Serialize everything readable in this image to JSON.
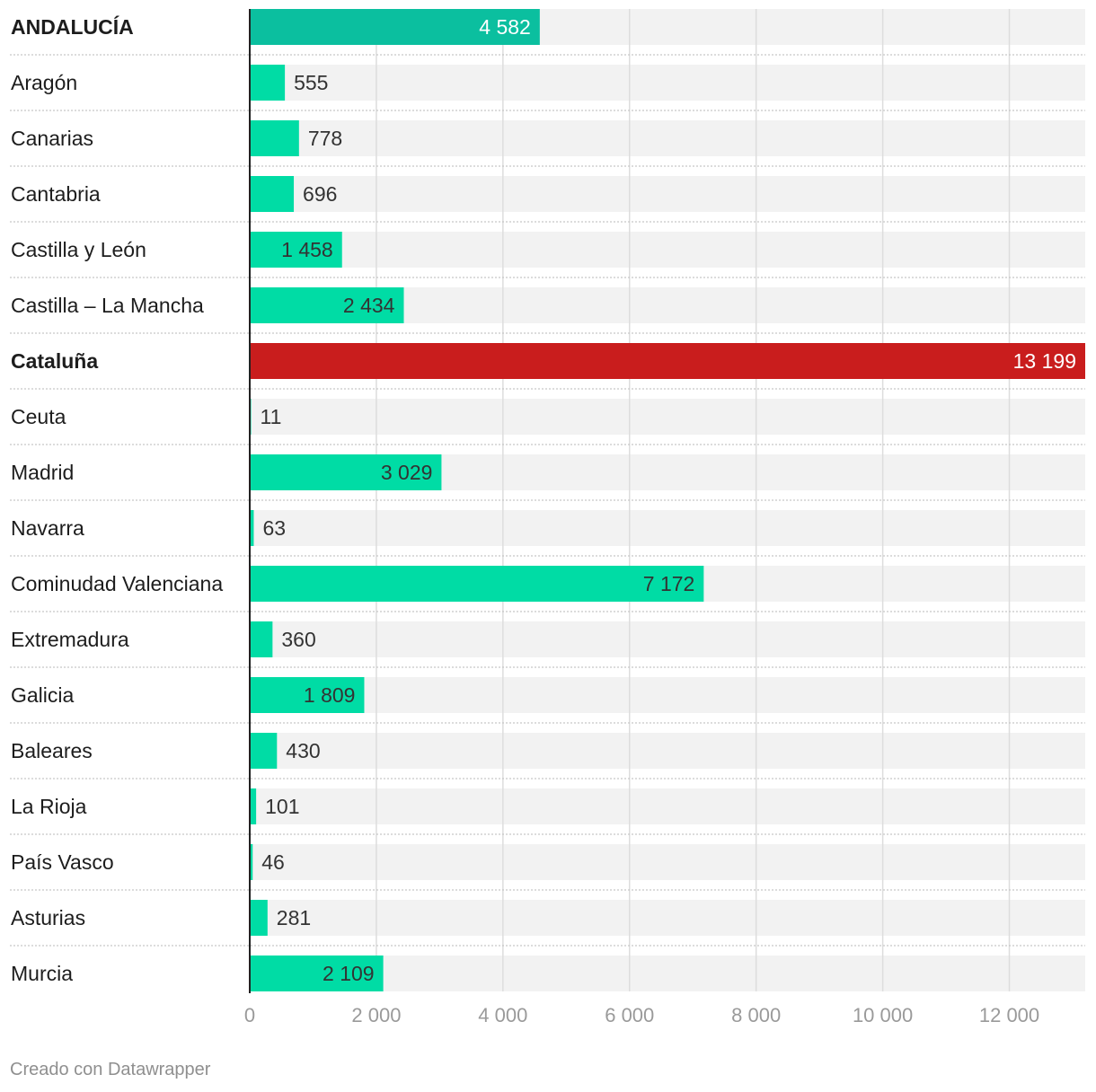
{
  "chart_data": {
    "type": "bar",
    "orientation": "horizontal",
    "categories": [
      "ANDALUCÍA",
      "Aragón",
      "Canarias",
      "Cantabria",
      "Castilla y León",
      "Castilla – La Mancha",
      "Cataluña",
      "Ceuta",
      "Madrid",
      "Navarra",
      "Cominudad Valenciana",
      "Extremadura",
      "Galicia",
      "Baleares",
      "La Rioja",
      "País Vasco",
      "Asturias",
      "Murcia"
    ],
    "values": [
      4582,
      555,
      778,
      696,
      1458,
      2434,
      13199,
      11,
      3029,
      63,
      7172,
      360,
      1809,
      430,
      101,
      46,
      281,
      2109
    ],
    "value_labels": [
      "4 582",
      "555",
      "778",
      "696",
      "1 458",
      "2 434",
      "13 199",
      "11",
      "3 029",
      "63",
      "7 172",
      "360",
      "1 809",
      "430",
      "101",
      "46",
      "281",
      "2 109"
    ],
    "highlighted": [
      "ANDALUCÍA",
      "Cataluña"
    ],
    "bar_colors": {
      "default": "#00dca5",
      "ANDALUCÍA": "#0bbf9f",
      "Cataluña": "#c91d1d"
    },
    "background_bar_color": "#f2f2f2",
    "xlim": [
      0,
      13199
    ],
    "x_ticks": [
      0,
      2000,
      4000,
      6000,
      8000,
      10000,
      12000
    ],
    "x_tick_labels": [
      "0",
      "2 000",
      "4 000",
      "6 000",
      "8 000",
      "10 000",
      "12 000"
    ],
    "grid": true
  },
  "footer": {
    "credit": "Creado con Datawrapper"
  }
}
